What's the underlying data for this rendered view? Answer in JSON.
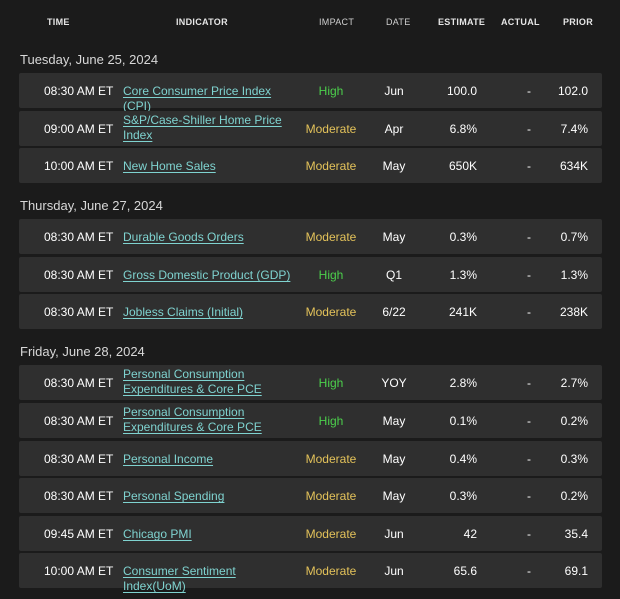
{
  "colors": {
    "high": "#4cd04c",
    "moderate": "#e3c25a",
    "link": "#7fd3d0"
  },
  "columns": {
    "time": "TIME",
    "indicator": "INDICATOR",
    "impact": "IMPACT",
    "date": "DATE",
    "estimate": "ESTIMATE",
    "actual": "ACTUAL",
    "prior": "PRIOR"
  },
  "sections": [
    {
      "title": "Tuesday, June 25, 2024",
      "rows": [
        {
          "time": "08:30 AM ET",
          "indicator": "Core Consumer Price Index (CPI)",
          "impact": "High",
          "date": "Jun",
          "estimate": "100.0",
          "actual": "-",
          "prior": "102.0"
        },
        {
          "time": "09:00 AM ET",
          "indicator": "S&P/Case-Shiller Home Price Index",
          "impact": "Moderate",
          "date": "Apr",
          "estimate": "6.8%",
          "actual": "-",
          "prior": "7.4%"
        },
        {
          "time": "10:00 AM ET",
          "indicator": "New Home Sales",
          "impact": "Moderate",
          "date": "May",
          "estimate": "650K",
          "actual": "-",
          "prior": "634K"
        }
      ]
    },
    {
      "title": "Thursday, June 27, 2024",
      "rows": [
        {
          "time": "08:30 AM ET",
          "indicator": "Durable Goods Orders",
          "impact": "Moderate",
          "date": "May",
          "estimate": "0.3%",
          "actual": "-",
          "prior": "0.7%"
        },
        {
          "time": "08:30 AM ET",
          "indicator": "Gross Domestic Product (GDP)",
          "impact": "High",
          "date": "Q1",
          "estimate": "1.3%",
          "actual": "-",
          "prior": "1.3%"
        },
        {
          "time": "08:30 AM ET",
          "indicator": "Jobless Claims (Initial)",
          "impact": "Moderate",
          "date": "6/22",
          "estimate": "241K",
          "actual": "-",
          "prior": "238K"
        }
      ]
    },
    {
      "title": "Friday, June 28, 2024",
      "rows": [
        {
          "time": "08:30 AM ET",
          "indicator": "Personal Consumption Expenditures & Core PCE",
          "impact": "High",
          "date": "YOY",
          "estimate": "2.8%",
          "actual": "-",
          "prior": "2.7%"
        },
        {
          "time": "08:30 AM ET",
          "indicator": "Personal Consumption Expenditures & Core PCE",
          "impact": "High",
          "date": "May",
          "estimate": "0.1%",
          "actual": "-",
          "prior": "0.2%"
        },
        {
          "time": "08:30 AM ET",
          "indicator": "Personal Income",
          "impact": "Moderate",
          "date": "May",
          "estimate": "0.4%",
          "actual": "-",
          "prior": "0.3%"
        },
        {
          "time": "08:30 AM ET",
          "indicator": "Personal Spending",
          "impact": "Moderate",
          "date": "May",
          "estimate": "0.3%",
          "actual": "-",
          "prior": "0.2%"
        },
        {
          "time": "09:45 AM ET",
          "indicator": "Chicago PMI",
          "impact": "Moderate",
          "date": "Jun",
          "estimate": "42",
          "actual": "-",
          "prior": "35.4"
        },
        {
          "time": "10:00 AM ET",
          "indicator": "Consumer Sentiment Index(UoM)",
          "impact": "Moderate",
          "date": "Jun",
          "estimate": "65.6",
          "actual": "-",
          "prior": "69.1"
        }
      ]
    }
  ]
}
